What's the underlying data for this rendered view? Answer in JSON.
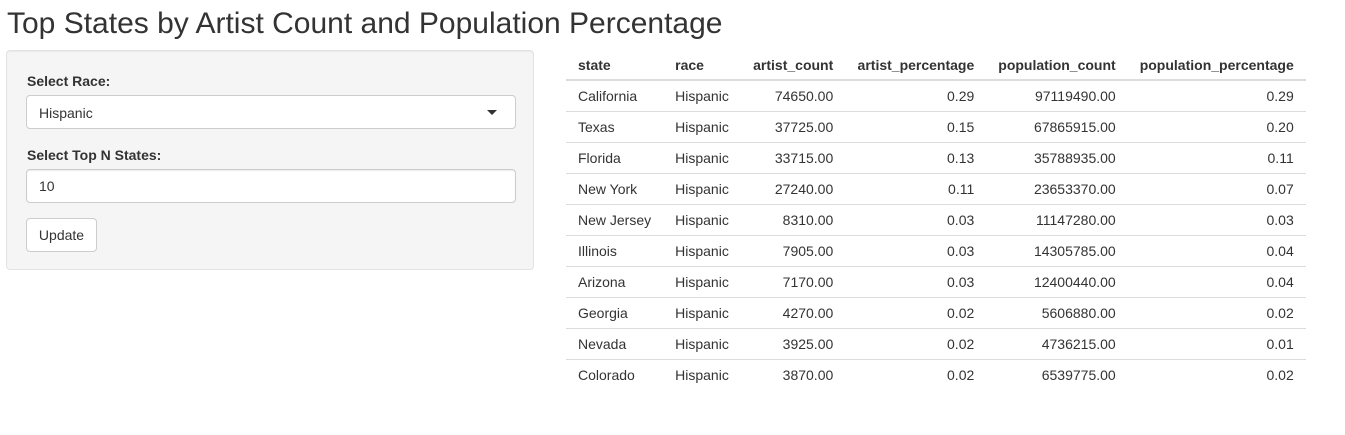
{
  "page": {
    "title": "Top States by Artist Count and Population Percentage"
  },
  "sidebar": {
    "race_label": "Select Race:",
    "race_selected": "Hispanic",
    "topn_label": "Select Top N States:",
    "topn_value": "10",
    "update_label": "Update"
  },
  "table": {
    "columns": [
      "state",
      "race",
      "artist_count",
      "artist_percentage",
      "population_count",
      "population_percentage"
    ],
    "rows": [
      [
        "California",
        "Hispanic",
        "74650.00",
        "0.29",
        "97119490.00",
        "0.29"
      ],
      [
        "Texas",
        "Hispanic",
        "37725.00",
        "0.15",
        "67865915.00",
        "0.20"
      ],
      [
        "Florida",
        "Hispanic",
        "33715.00",
        "0.13",
        "35788935.00",
        "0.11"
      ],
      [
        "New York",
        "Hispanic",
        "27240.00",
        "0.11",
        "23653370.00",
        "0.07"
      ],
      [
        "New Jersey",
        "Hispanic",
        "8310.00",
        "0.03",
        "11147280.00",
        "0.03"
      ],
      [
        "Illinois",
        "Hispanic",
        "7905.00",
        "0.03",
        "14305785.00",
        "0.04"
      ],
      [
        "Arizona",
        "Hispanic",
        "7170.00",
        "0.03",
        "12400440.00",
        "0.04"
      ],
      [
        "Georgia",
        "Hispanic",
        "4270.00",
        "0.02",
        "5606880.00",
        "0.02"
      ],
      [
        "Nevada",
        "Hispanic",
        "3925.00",
        "0.02",
        "4736215.00",
        "0.01"
      ],
      [
        "Colorado",
        "Hispanic",
        "3870.00",
        "0.02",
        "6539775.00",
        "0.02"
      ]
    ]
  }
}
